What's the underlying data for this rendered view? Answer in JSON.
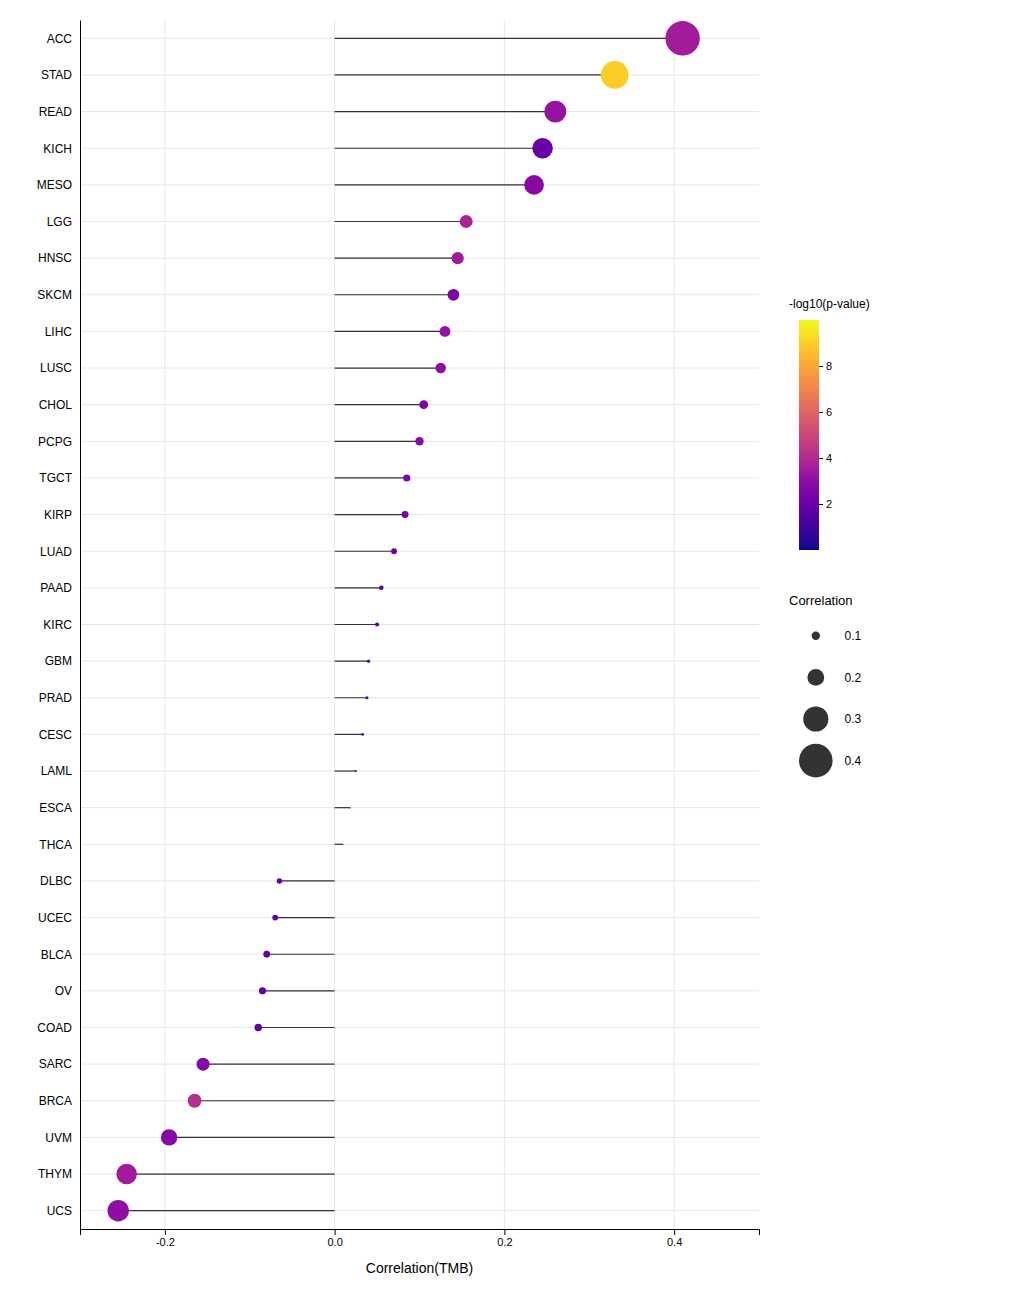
{
  "chart_data": {
    "type": "lollipop",
    "orientation": "horizontal",
    "categories": [
      "ACC",
      "STAD",
      "READ",
      "KICH",
      "MESO",
      "LGG",
      "HNSC",
      "SKCM",
      "LIHC",
      "LUSC",
      "CHOL",
      "PCPG",
      "TGCT",
      "KIRP",
      "LUAD",
      "PAAD",
      "KIRC",
      "GBM",
      "PRAD",
      "CESC",
      "LAML",
      "ESCA",
      "THCA",
      "DLBC",
      "UCEC",
      "BLCA",
      "OV",
      "COAD",
      "SARC",
      "BRCA",
      "UVM",
      "THYM",
      "UCS"
    ],
    "values": [
      0.41,
      0.33,
      0.26,
      0.245,
      0.235,
      0.155,
      0.145,
      0.14,
      0.13,
      0.125,
      0.105,
      0.1,
      0.085,
      0.083,
      0.07,
      0.055,
      0.05,
      0.04,
      0.038,
      0.033,
      0.025,
      0.018,
      0.01,
      -0.065,
      -0.07,
      -0.08,
      -0.085,
      -0.09,
      -0.155,
      -0.165,
      -0.195,
      -0.245,
      -0.255
    ],
    "color_values": [
      3.5,
      9.0,
      3.2,
      2.0,
      2.8,
      3.8,
      3.5,
      2.5,
      3.2,
      3.0,
      2.5,
      2.8,
      2.5,
      2.3,
      2.0,
      1.8,
      1.7,
      1.5,
      1.5,
      1.5,
      1.2,
      1.3,
      1.0,
      2.0,
      2.0,
      1.8,
      1.8,
      1.8,
      2.8,
      4.2,
      2.8,
      3.5,
      3.0
    ],
    "x_label": "Correlation(TMB)",
    "xlim": [
      -0.3,
      0.5
    ],
    "xticks": [
      -0.2,
      {
        "value": 0,
        "label": "0.0"
      },
      0.2,
      0.4
    ],
    "grid": true,
    "colorbar": {
      "title": "-log10(p-value)",
      "range": [
        0,
        10
      ],
      "ticks": [
        2,
        4,
        6,
        8
      ]
    },
    "size_legend": {
      "title": "Correlation",
      "values": [
        0.1,
        0.2,
        0.3,
        0.4
      ]
    }
  }
}
